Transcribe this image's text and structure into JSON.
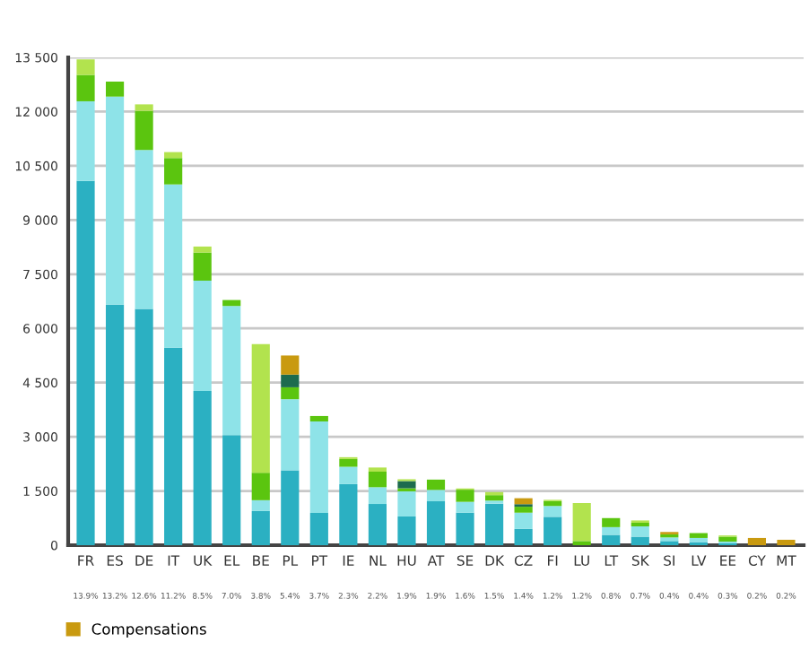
{
  "chart_data": {
    "type": "bar",
    "stacked": true,
    "categories": [
      "FR",
      "ES",
      "DE",
      "IT",
      "UK",
      "EL",
      "BE",
      "PL",
      "PT",
      "IE",
      "NL",
      "HU",
      "AT",
      "SE",
      "DK",
      "CZ",
      "FI",
      "LU",
      "LT",
      "SK",
      "SI",
      "LV",
      "EE",
      "CY",
      "MT"
    ],
    "annotations": [
      "13.9%",
      "13.2%",
      "12.6%",
      "11.2%",
      "8.5%",
      "7.0%",
      "3.8%",
      "5.4%",
      "3.7%",
      "2.3%",
      "2.2%",
      "1.9%",
      "1.9%",
      "1.6%",
      "1.5%",
      "1.4%",
      "1.2%",
      "1.2%",
      "0.8%",
      "0.7%",
      "0.4%",
      "0.4%",
      "0.3%",
      "0.2%",
      "0.2%"
    ],
    "series": [
      {
        "color": "#2bb0c2",
        "values": [
          10080,
          6655,
          6540,
          5464,
          4270,
          3045,
          945,
          2070,
          895,
          1690,
          1140,
          795,
          1215,
          900,
          1150,
          450,
          785,
          null,
          285,
          235,
          115,
          85,
          50,
          null,
          null
        ]
      },
      {
        "color": "#8ee3e8",
        "values": [
          2205,
          5760,
          4400,
          4520,
          3050,
          3575,
          300,
          1970,
          2530,
          480,
          465,
          695,
          315,
          300,
          85,
          450,
          300,
          null,
          215,
          285,
          100,
          115,
          50,
          null,
          null
        ]
      },
      {
        "color": "#5bc50f",
        "values": [
          730,
          415,
          1080,
          730,
          780,
          165,
          760,
          330,
          150,
          215,
          430,
          85,
          285,
          335,
          150,
          165,
          135,
          115,
          250,
          100,
          85,
          135,
          135,
          null,
          null
        ]
      },
      {
        "color": "#1d6b4e",
        "values": [
          null,
          null,
          null,
          null,
          null,
          null,
          null,
          350,
          null,
          null,
          null,
          200,
          null,
          null,
          null,
          70,
          null,
          null,
          null,
          null,
          null,
          null,
          null,
          null,
          null
        ]
      },
      {
        "color": "#b2e34e",
        "values": [
          430,
          null,
          180,
          165,
          165,
          null,
          3560,
          null,
          null,
          50,
          115,
          50,
          null,
          35,
          85,
          null,
          35,
          1050,
          null,
          65,
          null,
          null,
          35,
          null,
          null
        ]
      },
      {
        "name": "Compensations",
        "color": "#c99a10",
        "values": [
          null,
          null,
          null,
          null,
          null,
          null,
          null,
          530,
          null,
          null,
          null,
          null,
          null,
          null,
          null,
          165,
          null,
          null,
          null,
          null,
          65,
          null,
          null,
          200,
          150
        ]
      }
    ],
    "ylim": [
      0,
      13500
    ],
    "yticks": [
      0,
      {
        "value": 1500,
        "label": "1 500"
      },
      {
        "value": 3000,
        "label": "3 000"
      },
      {
        "value": 4500,
        "label": "4 500"
      },
      {
        "value": 6000,
        "label": "6 000"
      },
      {
        "value": 7500,
        "label": "7 500"
      },
      {
        "value": 9000,
        "label": "9 000"
      },
      {
        "value": 10500,
        "label": "10 500"
      },
      {
        "value": 12000,
        "label": "12 000"
      },
      {
        "value": 13500,
        "label": "13 500"
      }
    ],
    "grid": "y",
    "legend": "bottom left"
  }
}
